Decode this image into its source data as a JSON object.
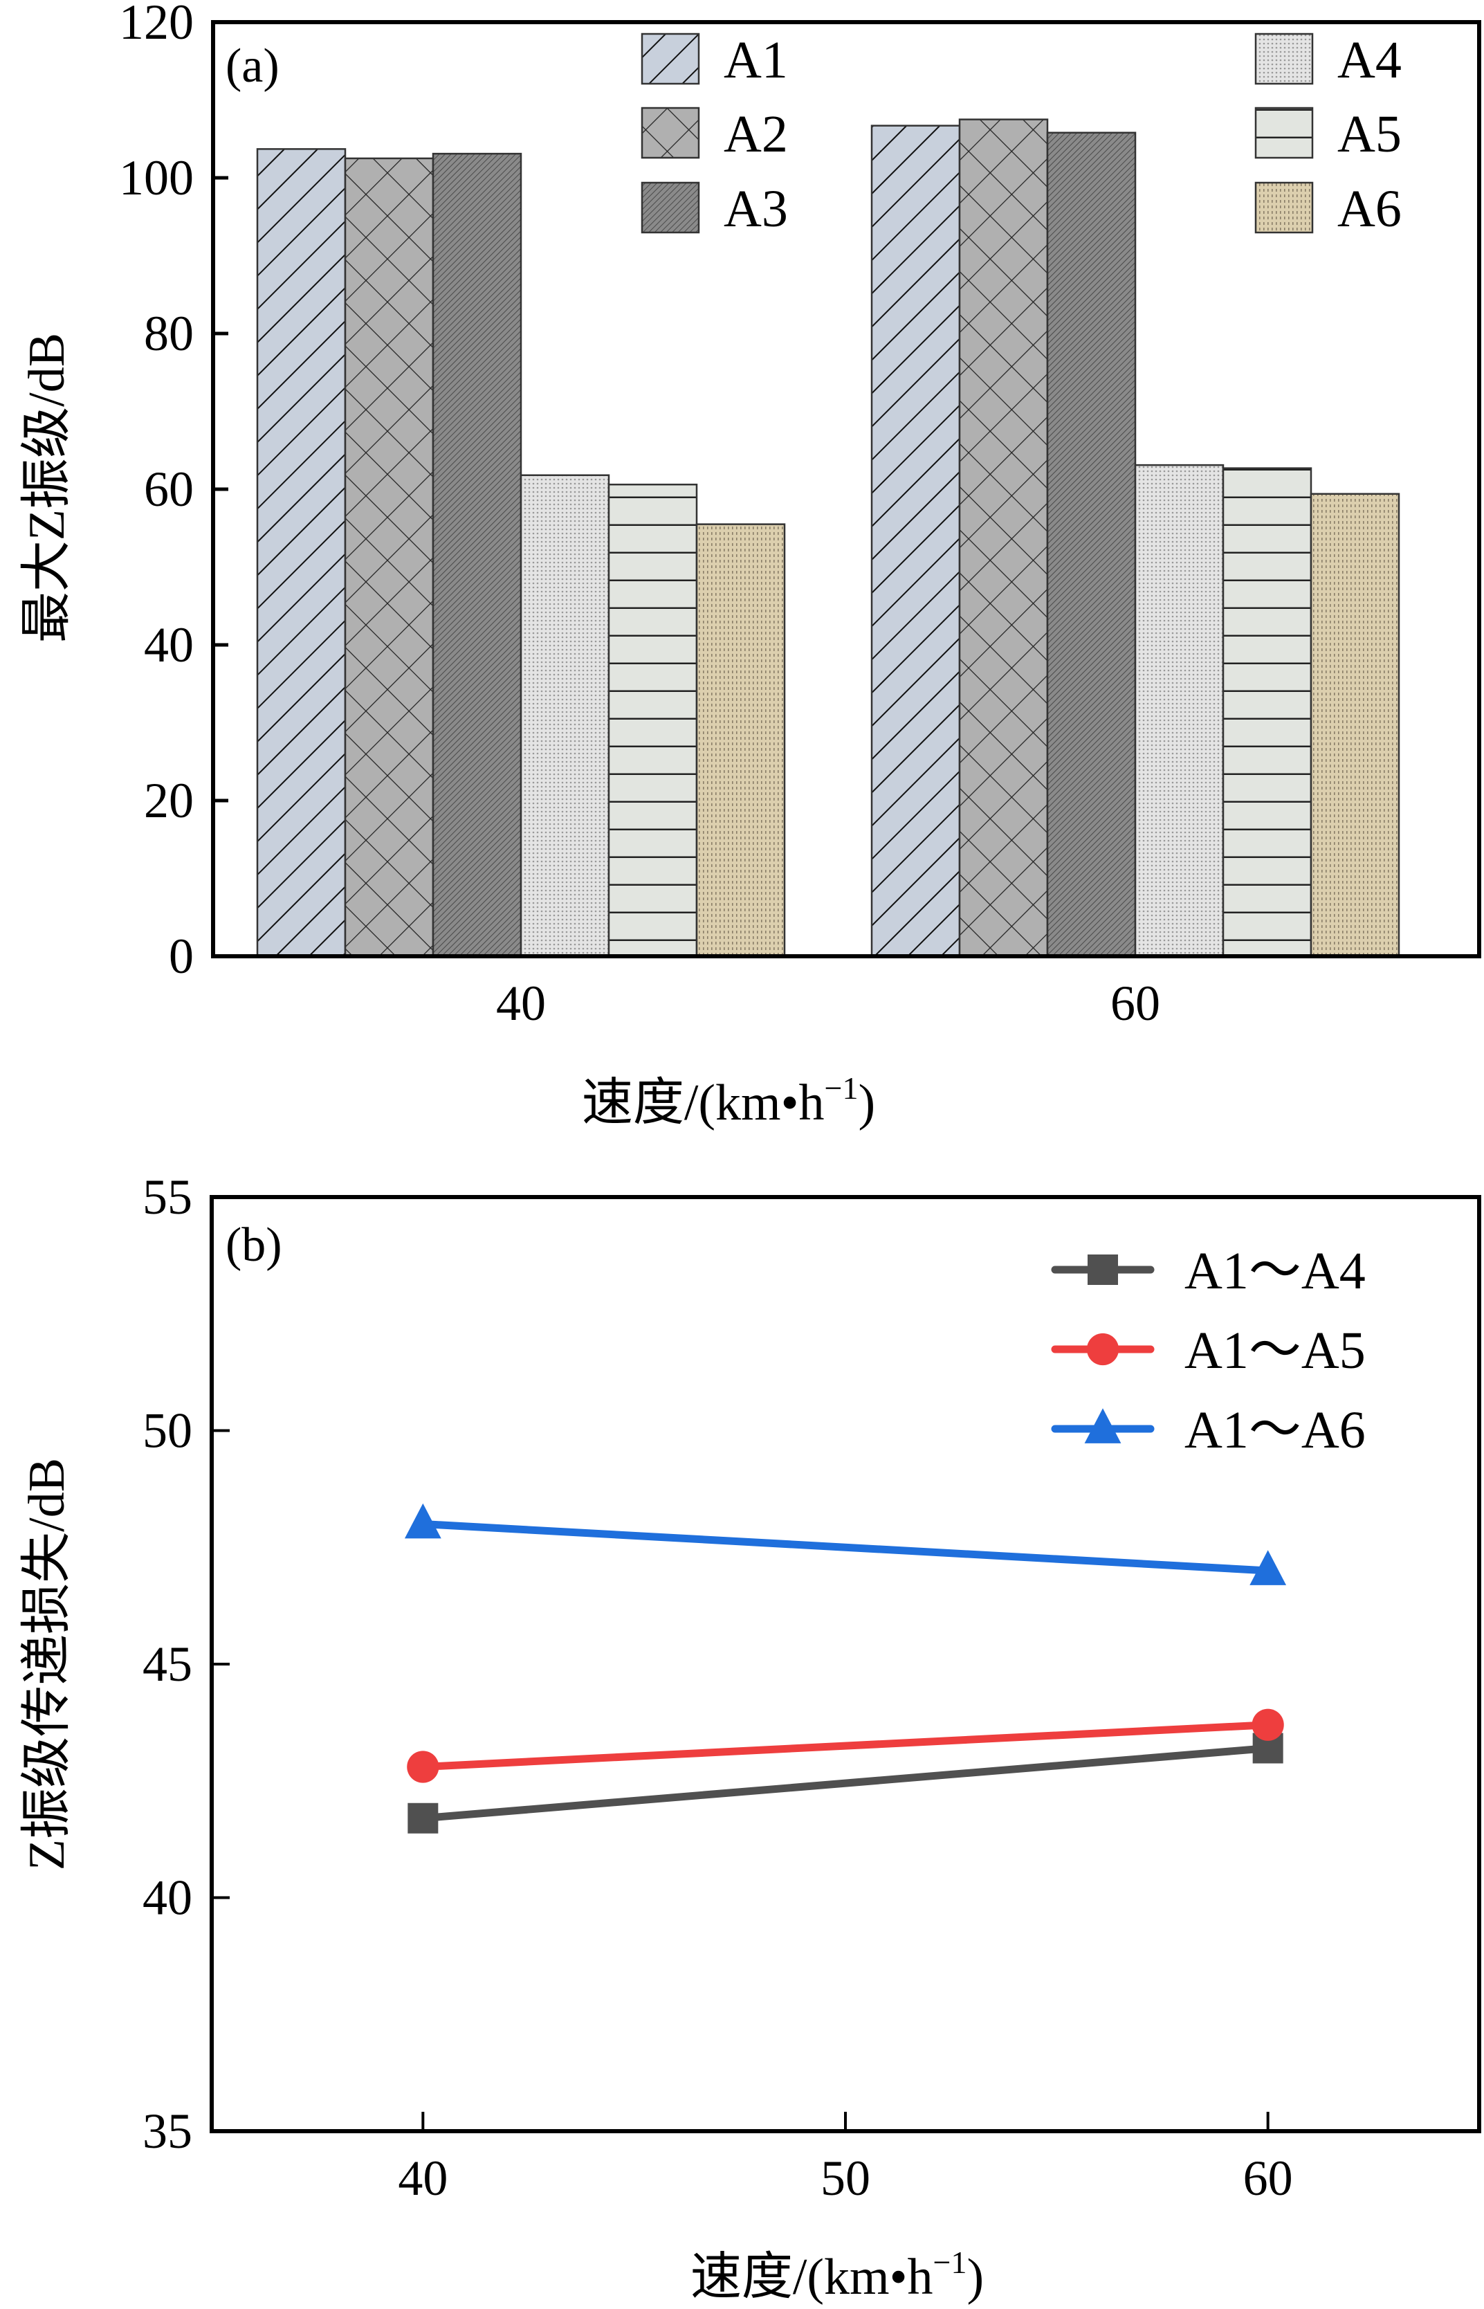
{
  "chart_data": [
    {
      "type": "bar",
      "panel_label": "(a)",
      "title": "",
      "xlabel": "速度/(km•h",
      "xlabel_sup": "−1",
      "xlabel_close": ")",
      "ylabel": "最大Z振级/dB",
      "ylim": [
        0,
        120
      ],
      "yticks": [
        0,
        20,
        40,
        60,
        80,
        100,
        120
      ],
      "categories": [
        "40",
        "60"
      ],
      "legend_position": "top",
      "series": [
        {
          "name": "A1",
          "values": [
            103.7,
            106.7
          ],
          "fill": "#c8d0dc",
          "pattern": "diagonal"
        },
        {
          "name": "A2",
          "values": [
            102.5,
            107.5
          ],
          "fill": "#b0b0b0",
          "pattern": "crosshatch"
        },
        {
          "name": "A3",
          "values": [
            103.1,
            105.8
          ],
          "fill": "#7a7a7a",
          "pattern": "dense"
        },
        {
          "name": "A4",
          "values": [
            61.8,
            63.1
          ],
          "fill": "#d8d8d8",
          "pattern": "dots"
        },
        {
          "name": "A5",
          "values": [
            60.6,
            62.7
          ],
          "fill": "#e2e5e0",
          "pattern": "horizontal"
        },
        {
          "name": "A6",
          "values": [
            55.5,
            59.4
          ],
          "fill": "#d6c8a6",
          "pattern": "stipple"
        }
      ]
    },
    {
      "type": "line",
      "panel_label": "(b)",
      "title": "",
      "xlabel": "速度/(km•h",
      "xlabel_sup": "−1",
      "xlabel_close": ")",
      "ylabel": "Z振级传递损失/dB",
      "xlim": [
        35,
        65
      ],
      "ylim": [
        35,
        55
      ],
      "xticks": [
        40,
        50,
        60
      ],
      "yticks": [
        35,
        40,
        45,
        50,
        55
      ],
      "x": [
        40,
        60
      ],
      "legend_position": "top-right",
      "series": [
        {
          "name": "A1～A4",
          "values": [
            41.7,
            43.2
          ],
          "color": "#505050",
          "marker": "square"
        },
        {
          "name": "A1～A5",
          "values": [
            42.8,
            43.7
          ],
          "color": "#ee3e3e",
          "marker": "circle"
        },
        {
          "name": "A1～A6",
          "values": [
            48.0,
            47.0
          ],
          "color": "#1f6fdc",
          "marker": "triangle"
        }
      ]
    }
  ]
}
